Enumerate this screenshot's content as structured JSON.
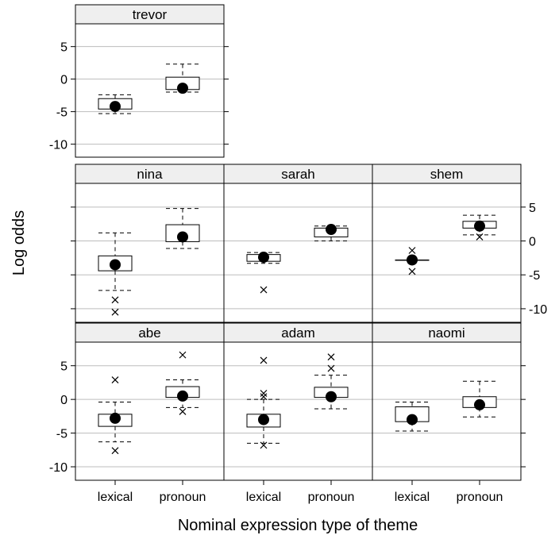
{
  "chart_data": {
    "type": "box",
    "xlabel": "Nominal expression type of theme",
    "ylabel": "Log odds",
    "categories": [
      "lexical",
      "pronoun"
    ],
    "ylim": [
      -12,
      8.5
    ],
    "yticks": [
      5,
      0,
      -5,
      -10
    ],
    "grid_y": true,
    "panels": [
      {
        "name": "trevor",
        "groups": [
          {
            "category": "lexical",
            "q1": -4.6,
            "median": -4.2,
            "q3": -3.0,
            "whisker_low": -5.3,
            "whisker_high": -2.4,
            "outliers": []
          },
          {
            "category": "pronoun",
            "q1": -1.6,
            "median": -1.4,
            "q3": 0.3,
            "whisker_low": -2.0,
            "whisker_high": 2.3,
            "outliers": []
          }
        ]
      },
      {
        "name": "nina",
        "groups": [
          {
            "category": "lexical",
            "q1": -4.4,
            "median": -3.5,
            "q3": -2.2,
            "whisker_low": -7.3,
            "whisker_high": 1.2,
            "outliers": [
              -8.7,
              -10.5
            ]
          },
          {
            "category": "pronoun",
            "q1": -0.1,
            "median": 0.6,
            "q3": 2.4,
            "whisker_low": -1.1,
            "whisker_high": 4.8,
            "outliers": []
          }
        ]
      },
      {
        "name": "sarah",
        "groups": [
          {
            "category": "lexical",
            "q1": -3.0,
            "median": -2.4,
            "q3": -2.0,
            "whisker_low": -3.3,
            "whisker_high": -1.7,
            "outliers": [
              -7.2
            ]
          },
          {
            "category": "pronoun",
            "q1": 0.6,
            "median": 1.7,
            "q3": 1.9,
            "whisker_low": 0.0,
            "whisker_high": 2.2,
            "outliers": []
          }
        ]
      },
      {
        "name": "shem",
        "groups": [
          {
            "category": "lexical",
            "q1": -2.8,
            "median": -2.8,
            "q3": -2.8,
            "whisker_low": -2.8,
            "whisker_high": -2.8,
            "outliers": [
              -1.4,
              -4.5
            ]
          },
          {
            "category": "pronoun",
            "q1": 1.9,
            "median": 2.2,
            "q3": 2.9,
            "whisker_low": 0.9,
            "whisker_high": 3.8,
            "outliers": [
              0.6
            ]
          }
        ]
      },
      {
        "name": "abe",
        "groups": [
          {
            "category": "lexical",
            "q1": -4.0,
            "median": -2.8,
            "q3": -2.2,
            "whisker_low": -6.3,
            "whisker_high": -0.4,
            "outliers": [
              2.9,
              -7.6
            ]
          },
          {
            "category": "pronoun",
            "q1": 0.3,
            "median": 0.5,
            "q3": 1.9,
            "whisker_low": -1.2,
            "whisker_high": 2.9,
            "outliers": [
              6.6,
              -1.8
            ]
          }
        ]
      },
      {
        "name": "adam",
        "groups": [
          {
            "category": "lexical",
            "q1": -4.1,
            "median": -3.0,
            "q3": -2.2,
            "whisker_low": -6.5,
            "whisker_high": 0.0,
            "outliers": [
              5.8,
              0.9,
              0.4,
              -6.8
            ]
          },
          {
            "category": "pronoun",
            "q1": 0.3,
            "median": 0.4,
            "q3": 1.8,
            "whisker_low": -1.4,
            "whisker_high": 3.6,
            "outliers": [
              6.3,
              4.6
            ]
          }
        ]
      },
      {
        "name": "naomi",
        "groups": [
          {
            "category": "lexical",
            "q1": -3.3,
            "median": -3.0,
            "q3": -1.1,
            "whisker_low": -4.7,
            "whisker_high": -0.4,
            "outliers": []
          },
          {
            "category": "pronoun",
            "q1": -1.2,
            "median": -0.8,
            "q3": 0.4,
            "whisker_low": -2.6,
            "whisker_high": 2.7,
            "outliers": []
          }
        ]
      }
    ]
  }
}
